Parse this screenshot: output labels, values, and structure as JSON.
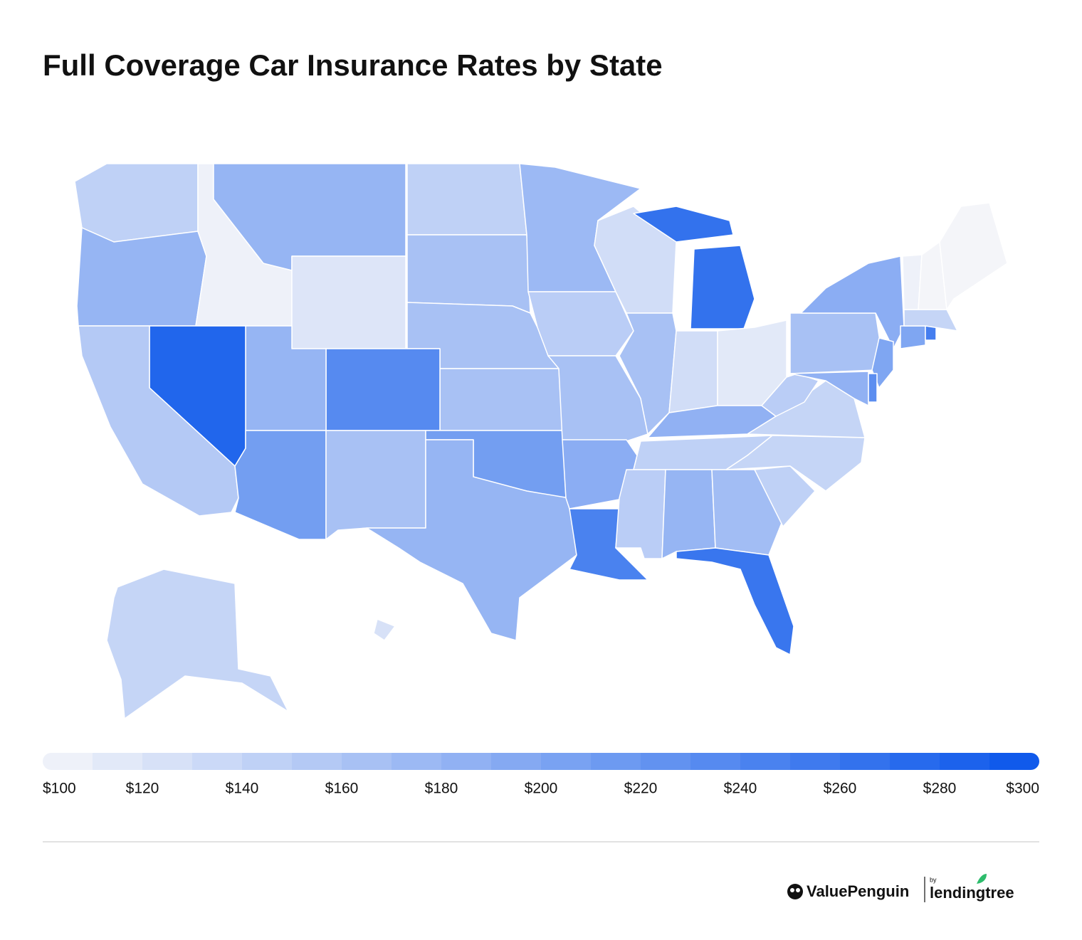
{
  "chart_data": {
    "type": "choropleth",
    "title": "Full Coverage Car Insurance Rates by State",
    "values": [
      145,
      180,
      105,
      180,
      120,
      145,
      165,
      165,
      165,
      235,
      180,
      280,
      155,
      210,
      165,
      210,
      180,
      175,
      150,
      165,
      190,
      245,
      130,
      165,
      265,
      130,
      115,
      185,
      145,
      150,
      180,
      170,
      260,
      145,
      140,
      140,
      150,
      165,
      190,
      200,
      185,
      230,
      200,
      250,
      140,
      105,
      100,
      100,
      140,
      125
    ],
    "color_range": [
      "#f4f5f9",
      "#0a56eb"
    ],
    "xlim": [
      100,
      300
    ],
    "legend_bins": 20,
    "xticks": [
      {
        "value": 100,
        "label": "$100"
      },
      {
        "value": 120,
        "label": "$120"
      },
      {
        "value": 140,
        "label": "$140"
      },
      {
        "value": 160,
        "label": "$160"
      },
      {
        "value": 180,
        "label": "$180"
      },
      {
        "value": 200,
        "label": "$200"
      },
      {
        "value": 220,
        "label": "$220"
      },
      {
        "value": 240,
        "label": "$240"
      },
      {
        "value": 260,
        "label": "$260"
      },
      {
        "value": 280,
        "label": "$280"
      },
      {
        "value": 300,
        "label": "$300"
      }
    ]
  },
  "footer": {
    "brand": "ValuePenguin",
    "by": "by",
    "partner": "lendingtree"
  }
}
